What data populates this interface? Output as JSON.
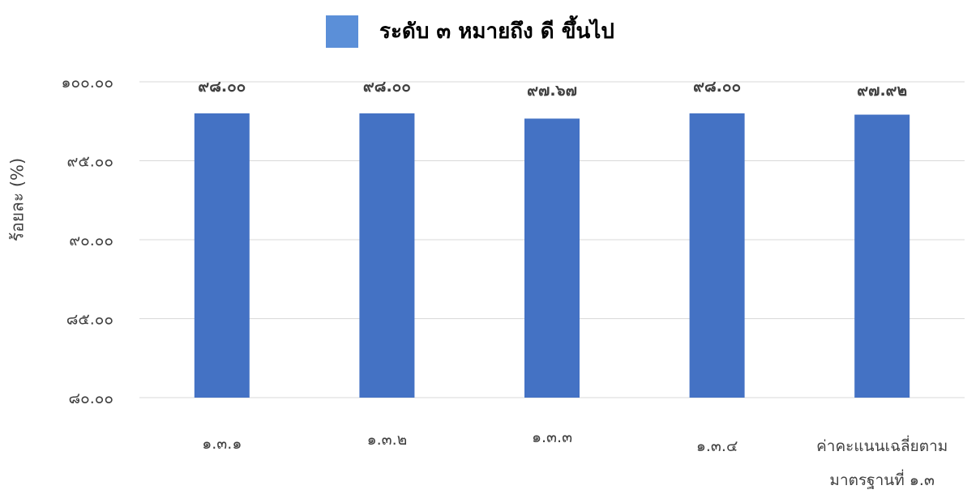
{
  "legend": {
    "label": "ระดับ ๓ หมายถึง ดี ขึ้นไป"
  },
  "colors": {
    "bar": "#4472c4",
    "legend_swatch": "#5b8fd8",
    "grid": "#d9d9d9",
    "text": "#404040"
  },
  "chart_data": {
    "type": "bar",
    "title": "",
    "xlabel": "",
    "ylabel": "ร้อยละ (%)",
    "ylim": [
      80,
      100
    ],
    "y_ticks": [
      100,
      95,
      90,
      85,
      80
    ],
    "y_tick_labels": [
      "๑๐๐.๐๐",
      "๙๕.๐๐",
      "๙๐.๐๐",
      "๘๕.๐๐",
      "๘๐.๐๐"
    ],
    "grid": true,
    "categories": [
      "๑.๓.๑",
      "๑.๓.๒",
      "๑.๓.๓",
      "๑.๓.๔",
      "ค่าคะแนนเฉลี่ยตาม มาตรฐานที่ ๑.๓"
    ],
    "category_lines": [
      [
        "๑.๓.๑"
      ],
      [
        "๑.๓.๒"
      ],
      [
        "๑.๓.๓"
      ],
      [
        "๑.๓.๔"
      ],
      [
        "ค่าคะแนนเฉลี่ยตาม",
        "มาตรฐานที่ ๑.๓"
      ]
    ],
    "series": [
      {
        "name": "ระดับ ๓ หมายถึง ดี ขึ้นไป",
        "values": [
          98.0,
          98.0,
          97.67,
          98.0,
          97.92
        ],
        "data_labels": [
          "๙๘.๐๐",
          "๙๘.๐๐",
          "๙๗.๖๗",
          "๙๘.๐๐",
          "๙๗.๙๒"
        ]
      }
    ]
  }
}
